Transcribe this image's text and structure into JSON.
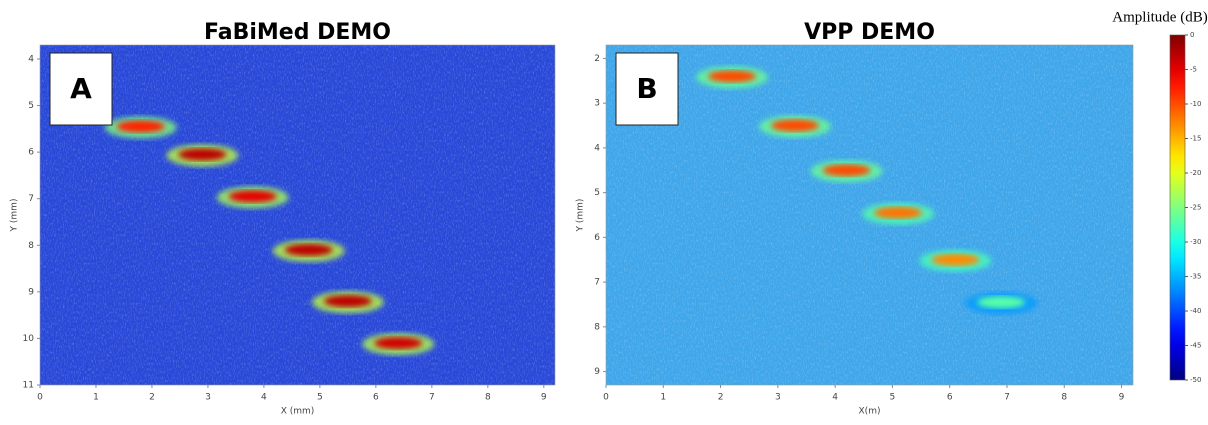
{
  "chart_data": [
    {
      "type": "heatmap",
      "title": "FaBiMed DEMO",
      "panel_label": "A",
      "xlabel": "X (mm)",
      "ylabel": "Y (mm)",
      "xlim": [
        0,
        9.2
      ],
      "xticks": [
        0,
        1,
        2,
        3,
        4,
        5,
        6,
        7,
        8,
        9
      ],
      "ylim": [
        3.7,
        11
      ],
      "yticks": [
        4,
        5,
        6,
        7,
        8,
        9,
        10,
        11
      ],
      "y_reversed": true,
      "background": "#2848d8",
      "x": [
        1.8,
        2.9,
        3.8,
        4.8,
        5.5,
        6.4
      ],
      "y": [
        5.45,
        6.05,
        6.95,
        8.1,
        9.2,
        10.1
      ],
      "values": [
        -8,
        -3,
        -5,
        -3,
        -3,
        -4
      ]
    },
    {
      "type": "heatmap",
      "title": "VPP DEMO",
      "panel_label": "B",
      "xlabel": "X(m)",
      "ylabel": "Y (mm)",
      "xlim": [
        0,
        9.2
      ],
      "xticks": [
        0,
        1,
        2,
        3,
        4,
        5,
        6,
        7,
        8,
        9
      ],
      "ylim": [
        1.7,
        9.3
      ],
      "yticks": [
        2,
        3,
        4,
        5,
        6,
        7,
        8,
        9
      ],
      "y_reversed": true,
      "background": "#3fa6ea",
      "x": [
        2.2,
        3.3,
        4.2,
        5.1,
        6.1,
        6.9
      ],
      "y": [
        2.4,
        3.5,
        4.5,
        5.45,
        6.5,
        7.45
      ],
      "values": [
        -10,
        -10,
        -10,
        -12,
        -13,
        -27
      ]
    },
    {
      "type": "colorbar",
      "title": "Amplitude (dB)",
      "colormap": "jet",
      "clim": [
        -50,
        0
      ],
      "ticks": [
        0,
        -5,
        -10,
        -15,
        -20,
        -25,
        -30,
        -35,
        -40,
        -45,
        -50
      ]
    }
  ]
}
